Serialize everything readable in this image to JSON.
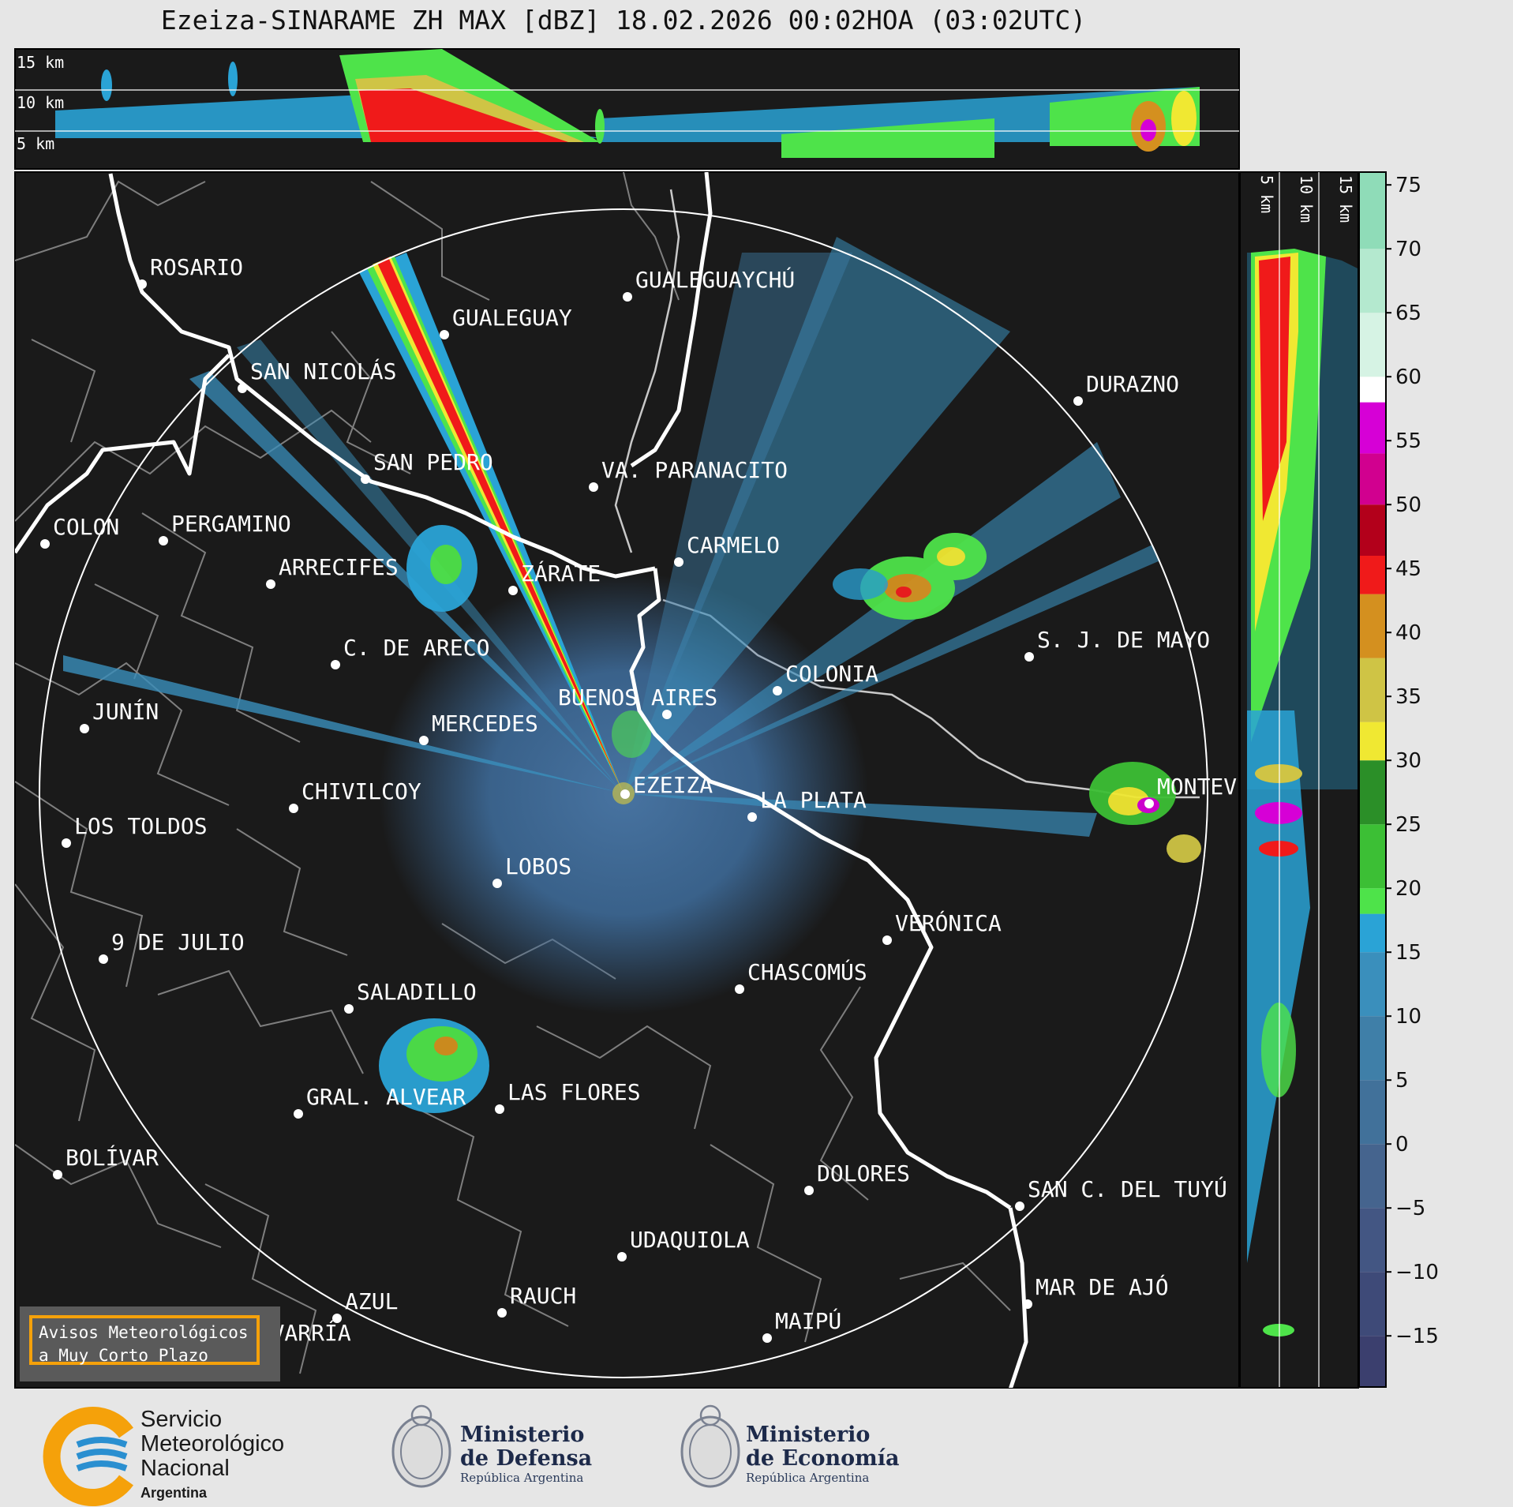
{
  "title": "Ezeiza-SINARAME ZH MAX [dBZ] 18.02.2026 00:02HOA (03:02UTC)",
  "top_panel": {
    "height_labels": [
      "15 km",
      "10 km",
      "5 km"
    ]
  },
  "side_panel": {
    "height_labels": [
      "5 km",
      "10 km",
      "15 km"
    ]
  },
  "colorbar": {
    "ticks": [
      75,
      70,
      65,
      60,
      55,
      50,
      45,
      40,
      35,
      30,
      25,
      20,
      15,
      10,
      5,
      0,
      "−5",
      "−10",
      "−15"
    ],
    "range": [
      -19,
      76
    ],
    "stops": [
      {
        "from": -19,
        "to": -15,
        "color": "#3b3f6e"
      },
      {
        "from": -15,
        "to": -10,
        "color": "#3e4a78"
      },
      {
        "from": -10,
        "to": -5,
        "color": "#435683"
      },
      {
        "from": -5,
        "to": 0,
        "color": "#45648e"
      },
      {
        "from": 0,
        "to": 5,
        "color": "#41719a"
      },
      {
        "from": 5,
        "to": 10,
        "color": "#3f7fa8"
      },
      {
        "from": 10,
        "to": 15,
        "color": "#3a8fbc"
      },
      {
        "from": 15,
        "to": 18,
        "color": "#2aa3d6"
      },
      {
        "from": 18,
        "to": 20,
        "color": "#4ee34a"
      },
      {
        "from": 20,
        "to": 25,
        "color": "#3cbf35"
      },
      {
        "from": 25,
        "to": 30,
        "color": "#2b8f28"
      },
      {
        "from": 30,
        "to": 33,
        "color": "#f0e832"
      },
      {
        "from": 33,
        "to": 38,
        "color": "#cfc445"
      },
      {
        "from": 38,
        "to": 43,
        "color": "#d4901f"
      },
      {
        "from": 43,
        "to": 46,
        "color": "#f01a1a"
      },
      {
        "from": 46,
        "to": 50,
        "color": "#b3001b"
      },
      {
        "from": 50,
        "to": 54,
        "color": "#d1008f"
      },
      {
        "from": 54,
        "to": 58,
        "color": "#d600d6"
      },
      {
        "from": 58,
        "to": 60,
        "color": "#ffffff"
      },
      {
        "from": 60,
        "to": 65,
        "color": "#d6f3e4"
      },
      {
        "from": 65,
        "to": 70,
        "color": "#b4e9cf"
      },
      {
        "from": 70,
        "to": 76,
        "color": "#8fdcb8"
      }
    ]
  },
  "cities": [
    {
      "name": "ROSARIO"
    },
    {
      "name": "GUALEGUAYCHÚ"
    },
    {
      "name": "GUALEGUAY"
    },
    {
      "name": "SAN NICOLÁS"
    },
    {
      "name": "DURAZNO"
    },
    {
      "name": "SAN PEDRO"
    },
    {
      "name": "VA. PARANACITO"
    },
    {
      "name": "COLON"
    },
    {
      "name": "PERGAMINO"
    },
    {
      "name": "CARMELO"
    },
    {
      "name": "ARRECIFES"
    },
    {
      "name": "ZÁRATE"
    },
    {
      "name": "S. J. DE MAYO"
    },
    {
      "name": "C. DE ARECO"
    },
    {
      "name": "COLONIA"
    },
    {
      "name": "JUNÍN"
    },
    {
      "name": "BUENOS AIRES"
    },
    {
      "name": "MERCEDES"
    },
    {
      "name": "EZEIZA"
    },
    {
      "name": "MONTEV"
    },
    {
      "name": "CHIVILCOY"
    },
    {
      "name": "LA PLATA"
    },
    {
      "name": "LOS TOLDOS"
    },
    {
      "name": "LOBOS"
    },
    {
      "name": "VERÓNICA"
    },
    {
      "name": "9 DE JULIO"
    },
    {
      "name": "CHASCOMÚS"
    },
    {
      "name": "SALADILLO"
    },
    {
      "name": "GRAL. ALVEAR"
    },
    {
      "name": "LAS FLORES"
    },
    {
      "name": "BOLÍVAR"
    },
    {
      "name": "DOLORES"
    },
    {
      "name": "SAN C. DEL TUYÚ"
    },
    {
      "name": "UDAQUIOLA"
    },
    {
      "name": "MAR DE AJÓ"
    },
    {
      "name": "AZUL"
    },
    {
      "name": "RAUCH"
    },
    {
      "name": "OLAVARRÍA"
    },
    {
      "name": "MAIPÚ"
    }
  ],
  "warning_box": {
    "line1": "Avisos Meteorológicos",
    "line2": "a Muy Corto Plazo"
  },
  "logos": {
    "smn": {
      "line1": "Servicio",
      "line2": "Meteorológico",
      "line3": "Nacional",
      "line4": "Argentina"
    },
    "defensa": {
      "line1": "Ministerio",
      "line2": "de Defensa",
      "line3": "República Argentina"
    },
    "economia": {
      "line1": "Ministerio",
      "line2": "de Economía",
      "line3": "República Argentina"
    }
  },
  "colors": {
    "map_bg": "#1a1a1a",
    "coast": "#ffffff",
    "border": "#8a8a8a",
    "smn_orange": "#f5a10a",
    "smn_blue": "#2a8fd0"
  }
}
